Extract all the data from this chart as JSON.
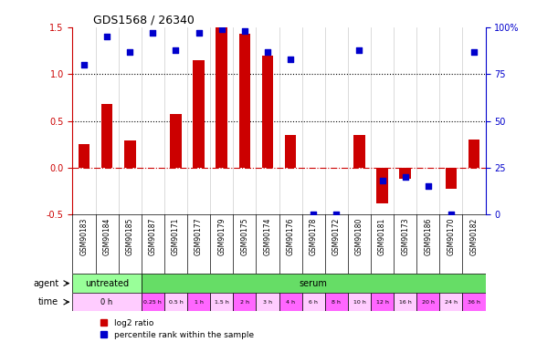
{
  "title": "GDS1568 / 26340",
  "samples": [
    "GSM90183",
    "GSM90184",
    "GSM90185",
    "GSM90187",
    "GSM90171",
    "GSM90177",
    "GSM90179",
    "GSM90175",
    "GSM90174",
    "GSM90176",
    "GSM90178",
    "GSM90172",
    "GSM90180",
    "GSM90181",
    "GSM90173",
    "GSM90186",
    "GSM90170",
    "GSM90182"
  ],
  "log2_ratio": [
    0.25,
    0.68,
    0.29,
    0.0,
    0.57,
    1.15,
    1.5,
    1.43,
    1.2,
    0.35,
    0.0,
    0.0,
    0.35,
    -0.38,
    -0.12,
    0.0,
    -0.23,
    0.3
  ],
  "percentile": [
    80,
    95,
    87,
    97,
    88,
    97,
    99,
    98,
    87,
    83,
    0,
    0,
    88,
    18,
    20,
    15,
    0,
    87
  ],
  "agent_labels": [
    "untreated",
    "serum"
  ],
  "agent_spans": [
    3,
    15
  ],
  "time_labels": [
    "0 h",
    "0.25 h",
    "0.5 h",
    "1 h",
    "1.5 h",
    "2 h",
    "3 h",
    "4 h",
    "6 h",
    "8 h",
    "10 h",
    "12 h",
    "16 h",
    "20 h",
    "24 h",
    "36 h"
  ],
  "time_spans": [
    3,
    1,
    1,
    1,
    1,
    1,
    1,
    1,
    1,
    1,
    1,
    1,
    1,
    1,
    1,
    1
  ],
  "bar_color": "#cc0000",
  "dot_color": "#0000cc",
  "hline_color": "#cc0000",
  "hline_style": "-.",
  "dotline1": 1.0,
  "dotline2": 0.5,
  "ylim_left": [
    -0.5,
    1.5
  ],
  "ylim_right": [
    0,
    100
  ],
  "yticks_left": [
    -0.5,
    0.0,
    0.5,
    1.0,
    1.5
  ],
  "yticks_right": [
    0,
    25,
    50,
    75,
    100
  ],
  "agent_colors": [
    "#99ff99",
    "#66dd66"
  ],
  "time_colors": [
    "#ffccff",
    "#ff66ff"
  ],
  "bg_color": "#ffffff",
  "grid_color": "#cccccc",
  "legend_items": [
    "log2 ratio",
    "percentile rank within the sample"
  ]
}
